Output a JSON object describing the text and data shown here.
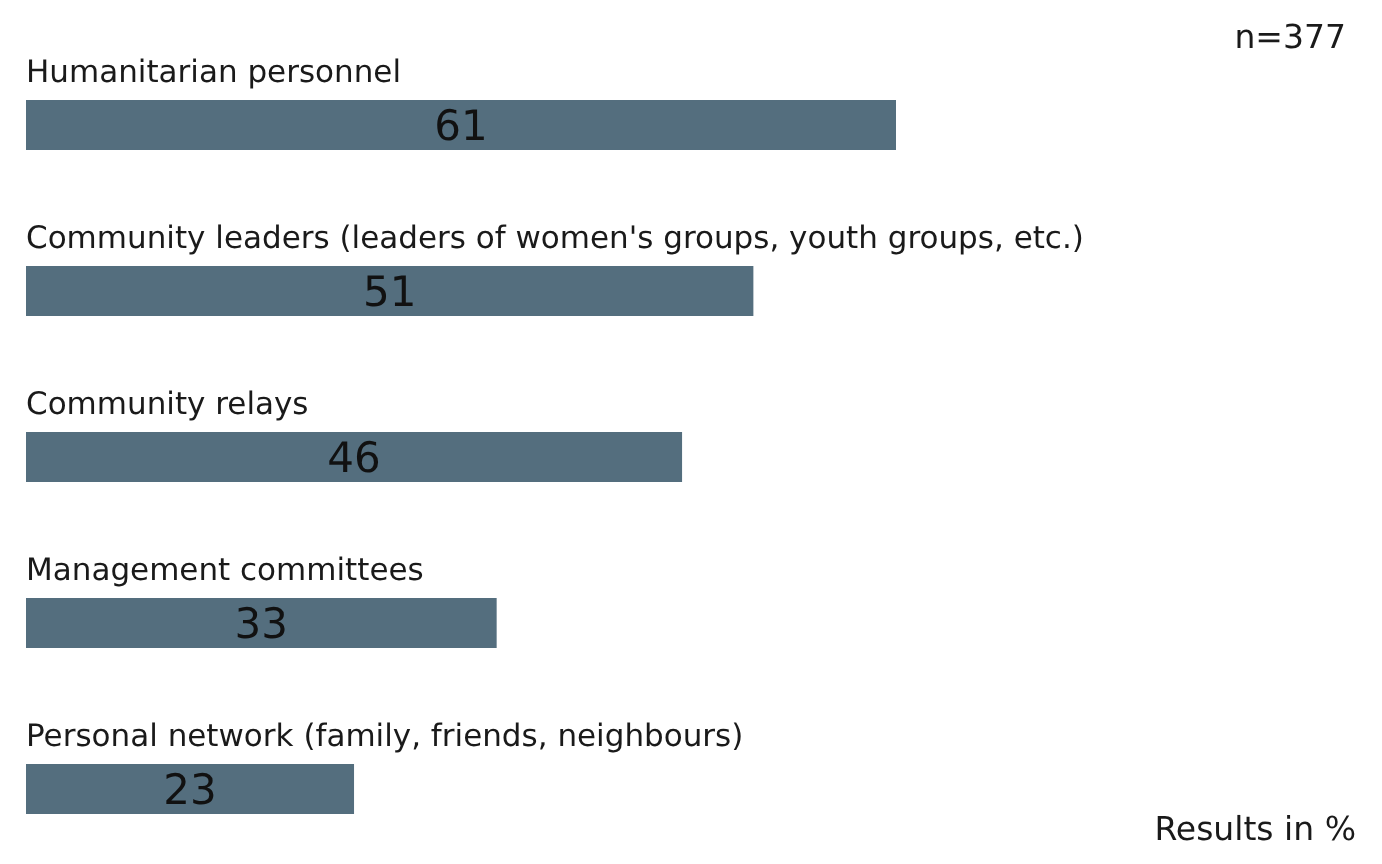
{
  "chart_data": {
    "type": "bar",
    "orientation": "horizontal",
    "categories": [
      "Humanitarian personnel",
      "Community leaders (leaders of women's groups, youth groups, etc.)",
      "Community relays",
      "Management committees",
      "Personal network (family, friends, neighbours)"
    ],
    "values": [
      61,
      51,
      46,
      33,
      23
    ],
    "color": "#546e7e",
    "data_labels": true,
    "annotations": [
      "n=377",
      "Results in %"
    ]
  }
}
